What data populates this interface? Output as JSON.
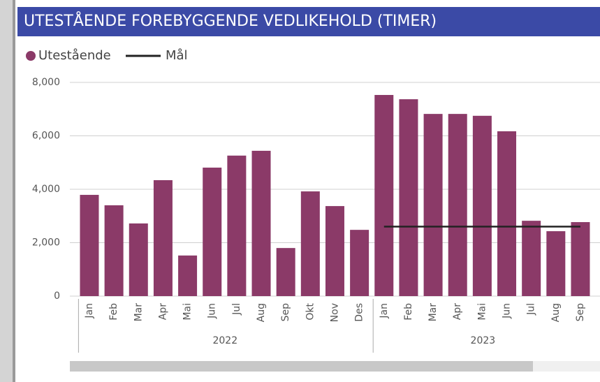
{
  "chart_data": {
    "type": "bar",
    "title": "UTESTÅENDE FOREBYGGENDE VEDLIKEHOLD (TIMER)",
    "groups": [
      {
        "name": "2022",
        "categories": [
          "Jan",
          "Feb",
          "Mar",
          "Apr",
          "Mai",
          "Jun",
          "Jul",
          "Aug",
          "Sep",
          "Okt",
          "Nov",
          "Des"
        ]
      },
      {
        "name": "2023",
        "categories": [
          "Jan",
          "Feb",
          "Mar",
          "Apr",
          "Mai",
          "Jun",
          "Jul",
          "Aug",
          "Sep"
        ]
      }
    ],
    "series": [
      {
        "name": "Utestående",
        "color": "#8b3a68",
        "type": "bar",
        "values": [
          3790,
          3400,
          2720,
          4340,
          1520,
          4810,
          5260,
          5440,
          1800,
          3920,
          3370,
          2480,
          7530,
          7370,
          6820,
          6820,
          6750,
          6170,
          2820,
          2430,
          2770
        ]
      },
      {
        "name": "Mål",
        "color": "#222222",
        "type": "line",
        "values": [
          null,
          null,
          null,
          null,
          null,
          null,
          null,
          null,
          null,
          null,
          null,
          null,
          2600,
          2600,
          2600,
          2600,
          2600,
          2600,
          2600,
          2600,
          2600
        ]
      }
    ],
    "ylim": [
      0,
      8000
    ],
    "yticks": [
      0,
      {
        "value": 2000,
        "label": "2,000"
      },
      {
        "value": 4000,
        "label": "4,000"
      },
      {
        "value": 6000,
        "label": "6,000"
      },
      {
        "value": 8000,
        "label": "8,000"
      }
    ],
    "grid": true
  }
}
